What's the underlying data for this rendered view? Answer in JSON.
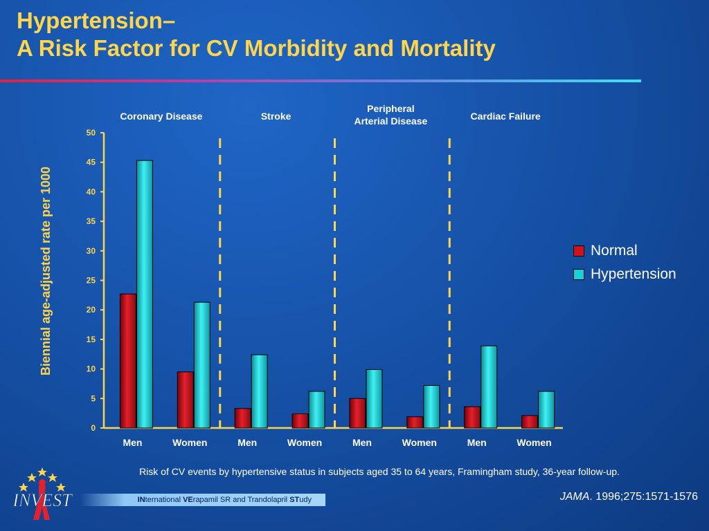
{
  "slide": {
    "title_line1": "Hypertension–",
    "title_line2": "A Risk Factor for CV Morbidity and Mortality",
    "caption": "Risk of CV events by hypertensive status in subjects aged 35 to 64 years, Framingham study, 36-year follow-up.",
    "citation_journal": "JAMA",
    "citation_rest": ". 1996;275:1571-1576",
    "logo_text": "INVEST",
    "banner": {
      "p1b": "IN",
      "p1": "ternational ",
      "p2b": "VE",
      "p2": "rapamil SR and Trandolapril ",
      "p3b": "ST",
      "p3": "udy"
    }
  },
  "chart_data": {
    "type": "bar",
    "ylabel": "Biennial age-adjusted rate per 1000",
    "ylim": [
      0,
      50
    ],
    "yticks": [
      0,
      5,
      10,
      15,
      20,
      25,
      30,
      35,
      40,
      45,
      50
    ],
    "groups": [
      {
        "name": "Coronary Disease",
        "categories": [
          "Men",
          "Women"
        ]
      },
      {
        "name": "Stroke",
        "categories": [
          "Men",
          "Women"
        ]
      },
      {
        "name": "Peripheral Arterial Disease",
        "categories": [
          "Men",
          "Women"
        ]
      },
      {
        "name": "Cardiac Failure",
        "categories": [
          "Men",
          "Women"
        ]
      }
    ],
    "categories": [
      "Men",
      "Women",
      "Men",
      "Women",
      "Men",
      "Women",
      "Men",
      "Women"
    ],
    "series": [
      {
        "name": "Normal",
        "color": "#d0121e",
        "values": [
          22.7,
          9.5,
          3.3,
          2.4,
          5.0,
          1.9,
          3.6,
          2.1
        ]
      },
      {
        "name": "Hypertension",
        "color": "#16d2d8",
        "values": [
          45.3,
          21.3,
          12.4,
          6.2,
          9.9,
          7.2,
          13.9,
          6.2
        ]
      }
    ],
    "legend_position": "right",
    "axis_color": "#ffd64a",
    "divider_color": "#ffd64a"
  }
}
